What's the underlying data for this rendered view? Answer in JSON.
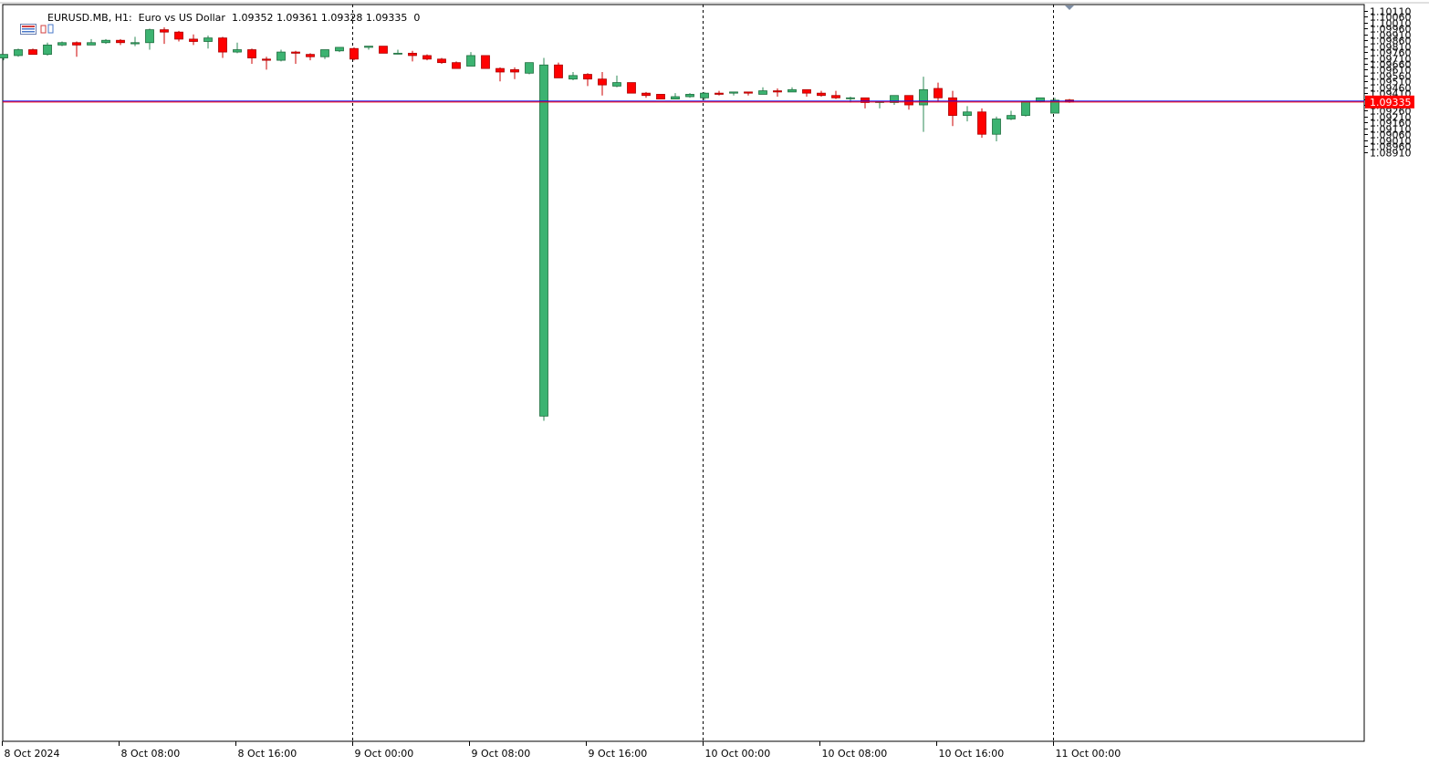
{
  "header": {
    "symbol": "EURUSD.MB",
    "timeframe": "H1",
    "description": "Euro vs US Dollar",
    "ohlc": "1.09352 1.09361 1.09328 1.09335",
    "extra": "0"
  },
  "price_label": {
    "value": "1.09335"
  },
  "colors": {
    "bull": "#3cb371",
    "bear": "#ff0000",
    "wick_bull": "#2e8b57",
    "wick_bear": "#cc0000",
    "bid_line": "#ff0000",
    "ask_line": "#0000ff",
    "grid": "#000000",
    "axis": "#000000"
  },
  "chart_data": {
    "type": "candlestick",
    "title": "EURUSD.MB, H1: Euro vs US Dollar",
    "ylim": [
      1.0887,
      1.1013
    ],
    "y_ticks": [
      "1.10110",
      "1.10060",
      "1.10010",
      "1.09960",
      "1.09910",
      "1.09860",
      "1.09810",
      "1.09760",
      "1.09710",
      "1.09660",
      "1.09610",
      "1.09560",
      "1.09510",
      "1.09460",
      "1.09410",
      "1.09360",
      "1.09310",
      "1.09260",
      "1.09210",
      "1.09160",
      "1.09110",
      "1.09060",
      "1.09010",
      "1.08960",
      "1.08910"
    ],
    "x_ticks": [
      {
        "label": "8 Oct 2024",
        "index": 0
      },
      {
        "label": "8 Oct 08:00",
        "index": 8
      },
      {
        "label": "8 Oct 16:00",
        "index": 16
      },
      {
        "label": "9 Oct 00:00",
        "index": 24
      },
      {
        "label": "9 Oct 08:00",
        "index": 32
      },
      {
        "label": "9 Oct 16:00",
        "index": 40
      },
      {
        "label": "10 Oct 00:00",
        "index": 48
      },
      {
        "label": "10 Oct 08:00",
        "index": 56
      },
      {
        "label": "10 Oct 16:00",
        "index": 64
      },
      {
        "label": "11 Oct 00:00",
        "index": 72
      }
    ],
    "separators": [
      24,
      48,
      72
    ],
    "bid": 1.09335,
    "ask": 1.09342,
    "candles": [
      {
        "o": 1.0971,
        "h": 1.0974,
        "l": 1.0969,
        "c": 1.0974
      },
      {
        "o": 1.0973,
        "h": 1.0979,
        "l": 1.0972,
        "c": 1.0978
      },
      {
        "o": 1.0978,
        "h": 1.0979,
        "l": 1.0974,
        "c": 1.0974
      },
      {
        "o": 1.0974,
        "h": 1.0984,
        "l": 1.0973,
        "c": 1.0982
      },
      {
        "o": 1.0982,
        "h": 1.0985,
        "l": 1.0981,
        "c": 1.0984
      },
      {
        "o": 1.0984,
        "h": 1.0985,
        "l": 1.0972,
        "c": 1.0982
      },
      {
        "o": 1.0982,
        "h": 1.0987,
        "l": 1.0982,
        "c": 1.0984
      },
      {
        "o": 1.0984,
        "h": 1.0987,
        "l": 1.0983,
        "c": 1.0986
      },
      {
        "o": 1.0986,
        "h": 1.0987,
        "l": 1.0982,
        "c": 1.0984
      },
      {
        "o": 1.0983,
        "h": 1.0989,
        "l": 1.0981,
        "c": 1.0984
      },
      {
        "o": 1.0984,
        "h": 1.0996,
        "l": 1.0978,
        "c": 1.0995
      },
      {
        "o": 1.0995,
        "h": 1.0997,
        "l": 1.0983,
        "c": 1.0993
      },
      {
        "o": 1.0993,
        "h": 1.0994,
        "l": 1.0985,
        "c": 1.0987
      },
      {
        "o": 1.0987,
        "h": 1.0991,
        "l": 1.0982,
        "c": 1.0985
      },
      {
        "o": 1.0985,
        "h": 1.099,
        "l": 1.0979,
        "c": 1.0988
      },
      {
        "o": 1.0988,
        "h": 1.0989,
        "l": 1.0971,
        "c": 1.0976
      },
      {
        "o": 1.0976,
        "h": 1.0984,
        "l": 1.0975,
        "c": 1.0978
      },
      {
        "o": 1.0978,
        "h": 1.0979,
        "l": 1.0966,
        "c": 1.0971
      },
      {
        "o": 1.097,
        "h": 1.0972,
        "l": 1.0961,
        "c": 1.0969
      },
      {
        "o": 1.0969,
        "h": 1.0978,
        "l": 1.0968,
        "c": 1.0976
      },
      {
        "o": 1.0976,
        "h": 1.0977,
        "l": 1.0966,
        "c": 1.0975
      },
      {
        "o": 1.0974,
        "h": 1.0975,
        "l": 1.0969,
        "c": 1.0972
      },
      {
        "o": 1.0972,
        "h": 1.0978,
        "l": 1.097,
        "c": 1.0978
      },
      {
        "o": 1.0977,
        "h": 1.098,
        "l": 1.0976,
        "c": 1.098
      },
      {
        "o": 1.0979,
        "h": 1.098,
        "l": 1.0969,
        "c": 1.097
      },
      {
        "o": 1.098,
        "h": 1.0981,
        "l": 1.0978,
        "c": 1.0981
      },
      {
        "o": 1.0981,
        "h": 1.0981,
        "l": 1.0975,
        "c": 1.0975
      },
      {
        "o": 1.0975,
        "h": 1.0978,
        "l": 1.0974,
        "c": 1.0975
      },
      {
        "o": 1.0975,
        "h": 1.0977,
        "l": 1.0968,
        "c": 1.0973
      },
      {
        "o": 1.0973,
        "h": 1.0974,
        "l": 1.0969,
        "c": 1.097
      },
      {
        "o": 1.097,
        "h": 1.0971,
        "l": 1.0966,
        "c": 1.0967
      },
      {
        "o": 1.0967,
        "h": 1.0968,
        "l": 1.0962,
        "c": 1.0962
      },
      {
        "o": 1.0964,
        "h": 1.0976,
        "l": 1.0964,
        "c": 1.0973
      },
      {
        "o": 1.0973,
        "h": 1.0973,
        "l": 1.0962,
        "c": 1.0962
      },
      {
        "o": 1.0962,
        "h": 1.0963,
        "l": 1.0951,
        "c": 1.0959
      },
      {
        "o": 1.0961,
        "h": 1.0963,
        "l": 1.0953,
        "c": 1.0959
      },
      {
        "o": 1.0958,
        "h": 1.0967,
        "l": 1.0957,
        "c": 1.0967
      },
      {
        "o": 1.0666,
        "h": 1.0971,
        "l": 1.0662,
        "c": 1.0965
      },
      {
        "o": 1.0965,
        "h": 1.0967,
        "l": 1.0954,
        "c": 1.0954
      },
      {
        "o": 1.0953,
        "h": 1.0959,
        "l": 1.0952,
        "c": 1.0956
      },
      {
        "o": 1.0957,
        "h": 1.0958,
        "l": 1.0947,
        "c": 1.0953
      },
      {
        "o": 1.0953,
        "h": 1.0959,
        "l": 1.0939,
        "c": 1.0948
      },
      {
        "o": 1.0947,
        "h": 1.0956,
        "l": 1.0946,
        "c": 1.095
      },
      {
        "o": 1.095,
        "h": 1.095,
        "l": 1.0941,
        "c": 1.0941
      },
      {
        "o": 1.0941,
        "h": 1.0942,
        "l": 1.0937,
        "c": 1.0939
      },
      {
        "o": 1.094,
        "h": 1.094,
        "l": 1.0936,
        "c": 1.0936
      },
      {
        "o": 1.0936,
        "h": 1.0941,
        "l": 1.0936,
        "c": 1.0938
      },
      {
        "o": 1.0938,
        "h": 1.0941,
        "l": 1.0937,
        "c": 1.094
      },
      {
        "o": 1.0937,
        "h": 1.0942,
        "l": 1.0935,
        "c": 1.0941
      },
      {
        "o": 1.0941,
        "h": 1.0943,
        "l": 1.0939,
        "c": 1.094
      },
      {
        "o": 1.0941,
        "h": 1.0942,
        "l": 1.0939,
        "c": 1.0942
      },
      {
        "o": 1.0942,
        "h": 1.0942,
        "l": 1.0939,
        "c": 1.0941
      },
      {
        "o": 1.094,
        "h": 1.0946,
        "l": 1.094,
        "c": 1.0943
      },
      {
        "o": 1.0943,
        "h": 1.0945,
        "l": 1.0938,
        "c": 1.0942
      },
      {
        "o": 1.0942,
        "h": 1.0946,
        "l": 1.0942,
        "c": 1.0944
      },
      {
        "o": 1.0944,
        "h": 1.0944,
        "l": 1.0938,
        "c": 1.0941
      },
      {
        "o": 1.0941,
        "h": 1.0943,
        "l": 1.0938,
        "c": 1.0939
      },
      {
        "o": 1.0939,
        "h": 1.0943,
        "l": 1.0936,
        "c": 1.0937
      },
      {
        "o": 1.0937,
        "h": 1.0938,
        "l": 1.0933,
        "c": 1.0937
      },
      {
        "o": 1.0937,
        "h": 1.0937,
        "l": 1.0928,
        "c": 1.0933
      },
      {
        "o": 1.0933,
        "h": 1.0934,
        "l": 1.0928,
        "c": 1.0934
      },
      {
        "o": 1.0933,
        "h": 1.0939,
        "l": 1.0931,
        "c": 1.0939
      },
      {
        "o": 1.0939,
        "h": 1.0939,
        "l": 1.0927,
        "c": 1.0931
      },
      {
        "o": 1.0931,
        "h": 1.0955,
        "l": 1.0908,
        "c": 1.0944
      },
      {
        "o": 1.0945,
        "h": 1.095,
        "l": 1.0934,
        "c": 1.0937
      },
      {
        "o": 1.0937,
        "h": 1.0943,
        "l": 1.0913,
        "c": 1.0922
      },
      {
        "o": 1.0922,
        "h": 1.093,
        "l": 1.0917,
        "c": 1.0925
      },
      {
        "o": 1.0925,
        "h": 1.0928,
        "l": 1.0903,
        "c": 1.0906
      },
      {
        "o": 1.0906,
        "h": 1.0921,
        "l": 1.09,
        "c": 1.0919
      },
      {
        "o": 1.0919,
        "h": 1.0926,
        "l": 1.0918,
        "c": 1.0922
      },
      {
        "o": 1.0922,
        "h": 1.0934,
        "l": 1.0921,
        "c": 1.0934
      },
      {
        "o": 1.0934,
        "h": 1.0937,
        "l": 1.0933,
        "c": 1.0937
      },
      {
        "o": 1.0924,
        "h": 1.0937,
        "l": 1.0924,
        "c": 1.0935
      },
      {
        "o": 1.09352,
        "h": 1.09361,
        "l": 1.09328,
        "c": 1.09335
      }
    ]
  }
}
